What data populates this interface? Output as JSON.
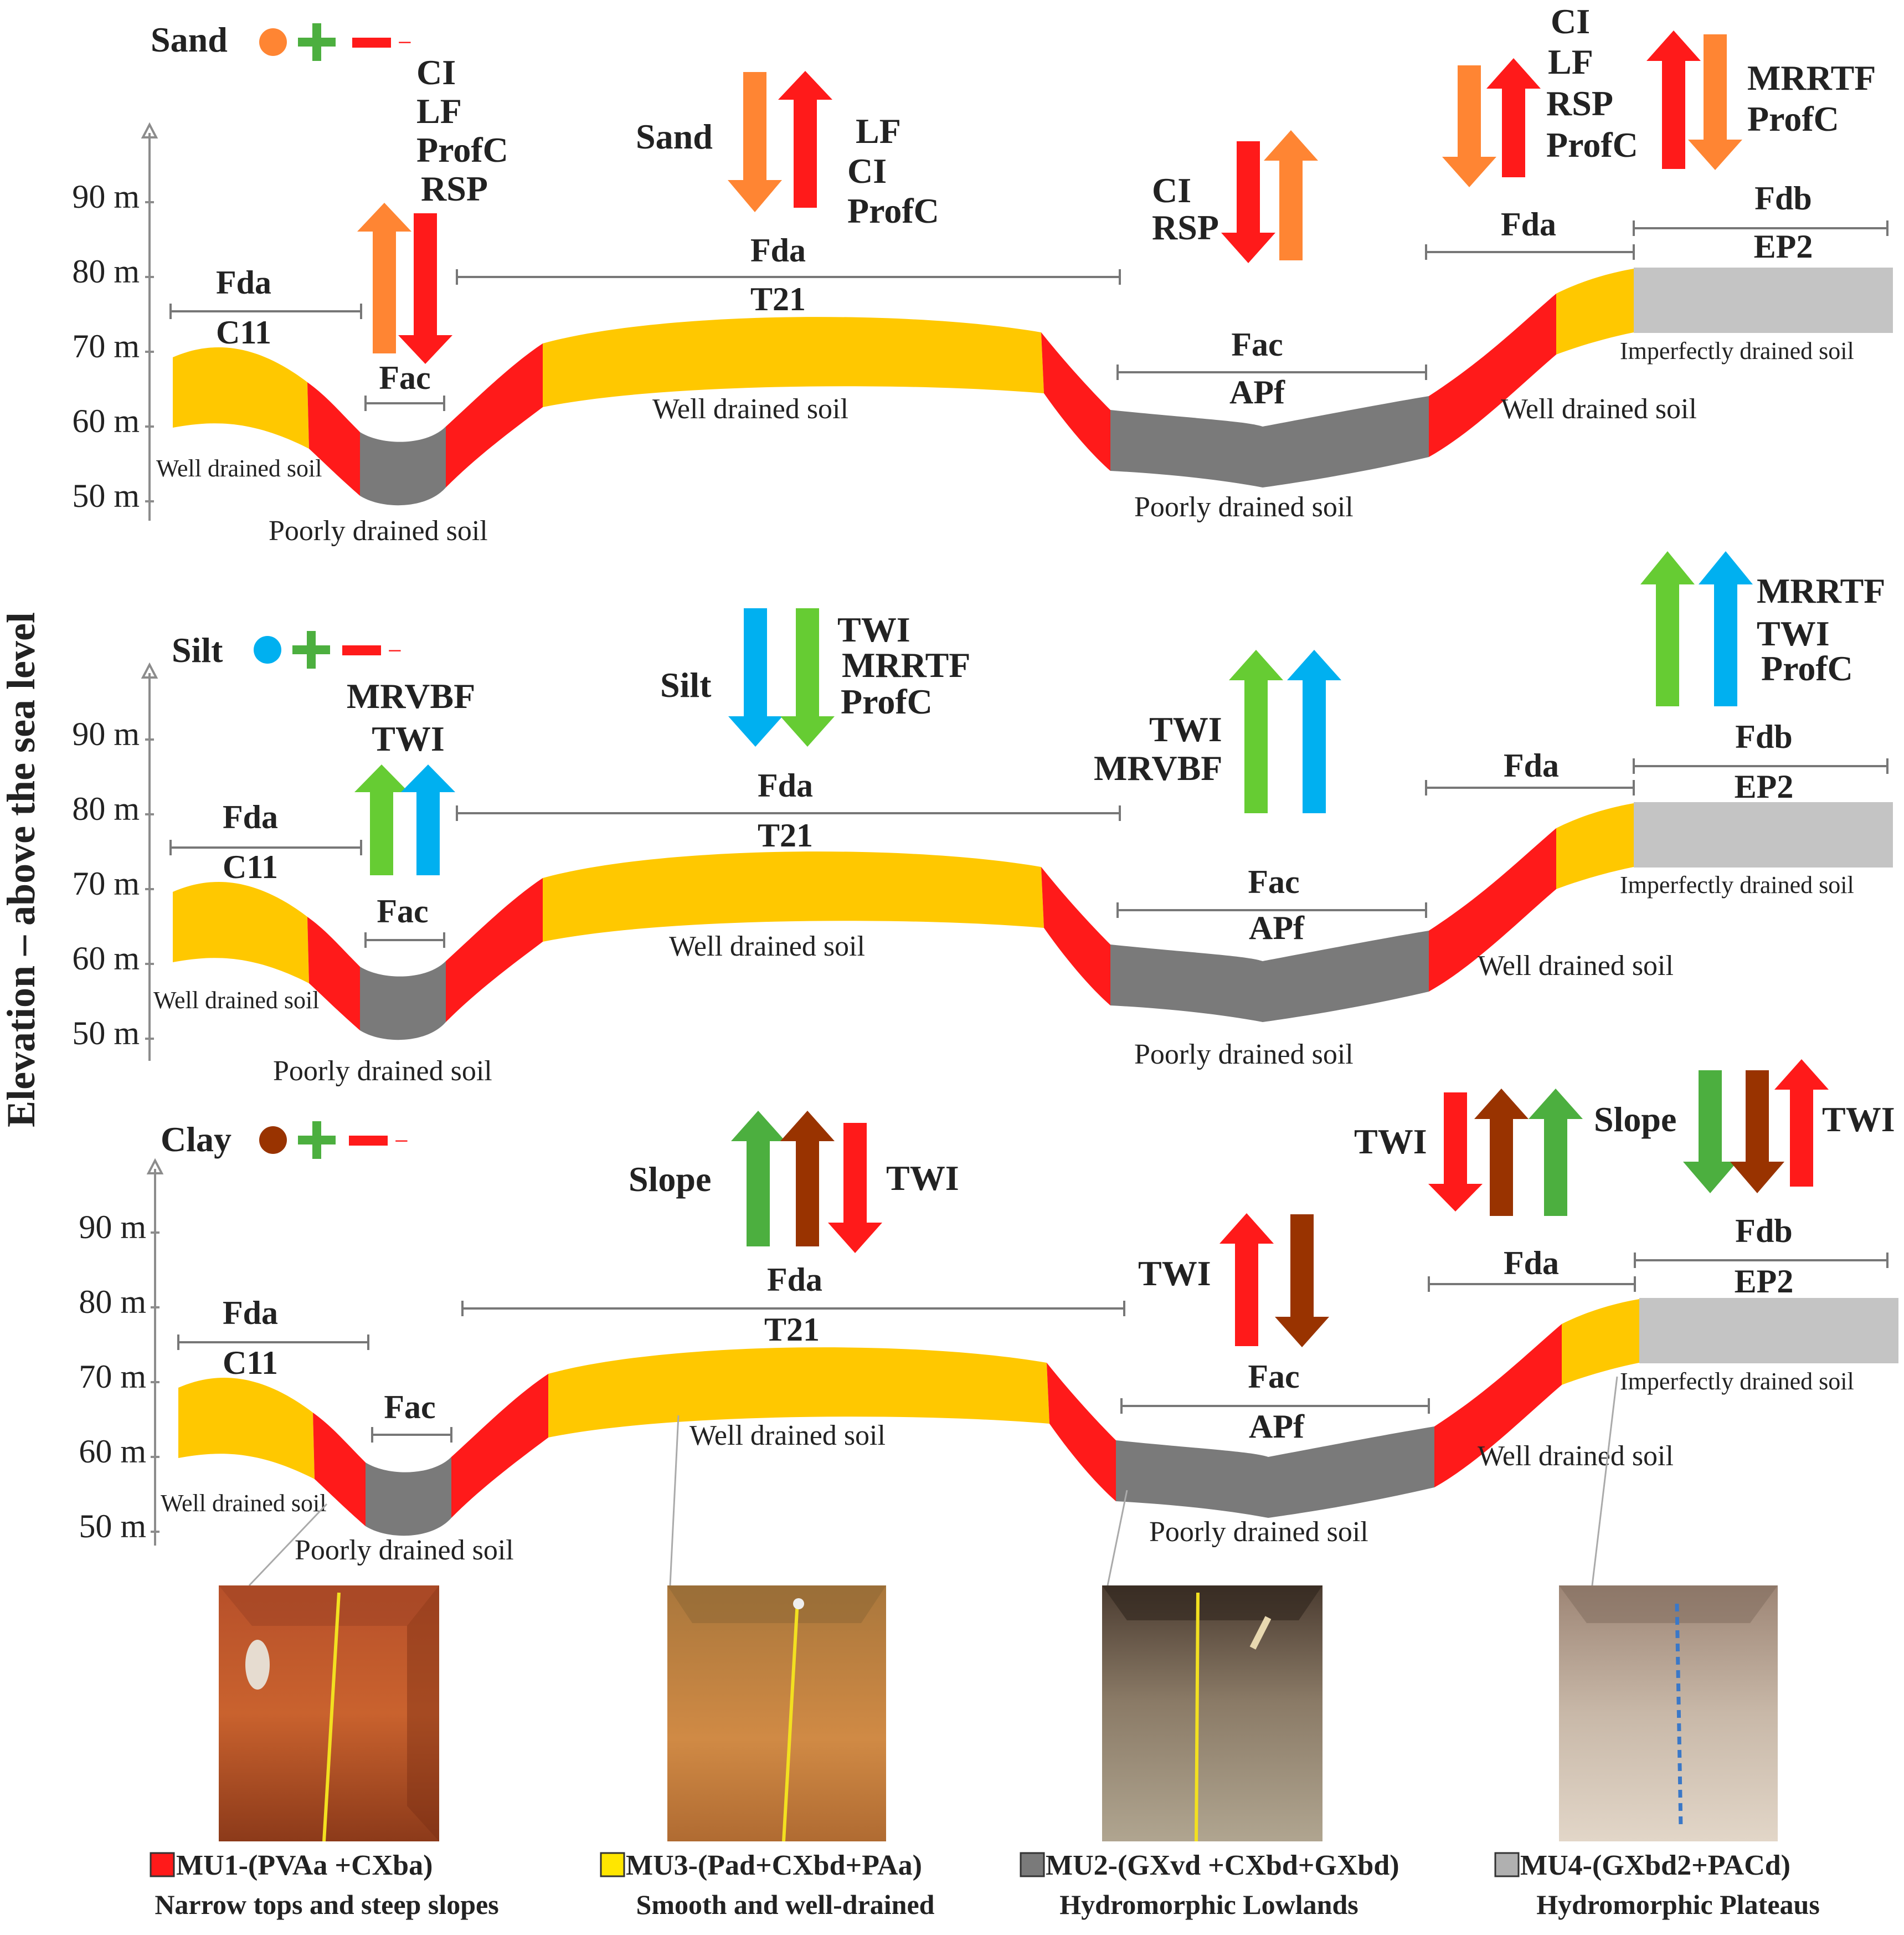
{
  "y_axis_title": "Elevation – above the sea level",
  "tick_labels": [
    "90 m",
    "80 m",
    "70 m",
    "60 m",
    "50 m"
  ],
  "colors": {
    "red": "#ff1a1a",
    "orange": "#ff8533",
    "yellow": "#ffc800",
    "dark_gray": "#7a7a7a",
    "light_gray": "#c4c4c4",
    "blue": "#00b0f0",
    "green": "#66cc33",
    "green2": "#4caf3f",
    "brown": "#993300"
  },
  "panels": [
    {
      "property": "Sand",
      "legend_minus": "−",
      "units": [
        "Fda",
        "C11",
        "Fac",
        "Fda",
        "T21",
        "Fac",
        "APf",
        "Fda",
        "Fdb",
        "EP2"
      ],
      "drainage": [
        "Well drained soil",
        "Poorly drained soil",
        "Well drained soil",
        "Poorly drained soil",
        "Well drained soil",
        "Imperfectly drained soil"
      ],
      "covariates": {
        "fac": [
          "CI",
          "LF",
          "ProfC",
          "RSP"
        ],
        "fda_label": "Sand",
        "fda": [
          "LF",
          "CI",
          "ProfC"
        ],
        "apf": [
          "CI",
          "RSP"
        ],
        "slope": [
          "CI",
          "LF",
          "RSP",
          "ProfC"
        ],
        "plateau": [
          "MRRTF",
          "ProfC"
        ]
      }
    },
    {
      "property": "Silt",
      "legend_minus": "−",
      "units": [
        "Fda",
        "C11",
        "Fac",
        "Fda",
        "T21",
        "Fac",
        "APf",
        "Fda",
        "Fdb",
        "EP2"
      ],
      "drainage": [
        "Well drained soil",
        "Poorly drained soil",
        "Well drained soil",
        "Poorly drained soil",
        "Well drained soil",
        "Imperfectly drained soil"
      ],
      "covariates": {
        "fac": [
          "MRVBF",
          "TWI"
        ],
        "fda_label": "Silt",
        "fda": [
          "TWI",
          "MRRTF",
          "ProfC"
        ],
        "apf": [
          "TWI",
          "MRVBF"
        ],
        "plateau": [
          "MRRTF",
          "TWI",
          "ProfC"
        ]
      }
    },
    {
      "property": "Clay",
      "legend_minus": "−",
      "units": [
        "Fda",
        "C11",
        "Fac",
        "Fda",
        "T21",
        "Fac",
        "APf",
        "Fda",
        "Fdb",
        "EP2"
      ],
      "drainage": [
        "Well drained soil",
        "Poorly drained soil",
        "Well drained soil",
        "Poorly drained soil",
        "Well drained soil",
        "Imperfectly drained soil"
      ],
      "covariates": {
        "fda_left": "Slope",
        "fda_right": "TWI",
        "apf": "TWI",
        "slope_left": "TWI",
        "plateau_left": "Slope",
        "plateau_right": "TWI"
      }
    }
  ],
  "photos": [
    {
      "code": "MU1-(PVAa +CXba)",
      "desc": "Narrow tops and steep slopes",
      "swatch": "#ff1a1a"
    },
    {
      "code": "MU3-(Pad+CXbd+PAa)",
      "desc": "Smooth and well-drained",
      "swatch": "#ffe600"
    },
    {
      "code": "MU2-(GXvd +CXbd+GXbd)",
      "desc": "Hydromorphic Lowlands",
      "swatch": "#7a7a7a"
    },
    {
      "code": "MU4-(GXbd2+PACd)",
      "desc": "Hydromorphic Plateaus",
      "swatch": "#b0b0b0"
    }
  ]
}
